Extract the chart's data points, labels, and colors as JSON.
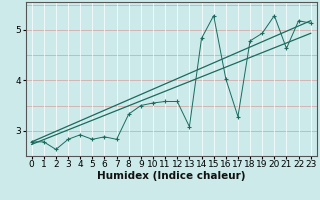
{
  "title": "",
  "xlabel": "Humidex (Indice chaleur)",
  "ylabel": "",
  "bg_color": "#cceaea",
  "grid_color_h": "#e8b0b0",
  "grid_color_v": "#ffffff",
  "line_color": "#1a6b5e",
  "marker": "+",
  "x_data": [
    0,
    1,
    2,
    3,
    4,
    5,
    6,
    7,
    8,
    9,
    10,
    11,
    12,
    13,
    14,
    15,
    16,
    17,
    18,
    19,
    20,
    21,
    22,
    23
  ],
  "y_scatter": [
    2.78,
    2.78,
    2.63,
    2.83,
    2.92,
    2.83,
    2.88,
    2.83,
    3.33,
    3.5,
    3.55,
    3.58,
    3.58,
    3.08,
    4.83,
    5.28,
    4.03,
    3.28,
    4.78,
    4.93,
    5.28,
    4.63,
    5.18,
    5.13
  ],
  "reg_line1_x": [
    0,
    23
  ],
  "reg_line1_y": [
    2.78,
    5.18
  ],
  "reg_line2_x": [
    0,
    23
  ],
  "reg_line2_y": [
    2.73,
    4.93
  ],
  "ylim": [
    2.5,
    5.55
  ],
  "xlim": [
    -0.5,
    23.5
  ],
  "yticks": [
    3,
    4,
    5
  ],
  "xticks": [
    0,
    1,
    2,
    3,
    4,
    5,
    6,
    7,
    8,
    9,
    10,
    11,
    12,
    13,
    14,
    15,
    16,
    17,
    18,
    19,
    20,
    21,
    22,
    23
  ],
  "xlabel_fontsize": 7.5,
  "tick_fontsize": 6.5
}
